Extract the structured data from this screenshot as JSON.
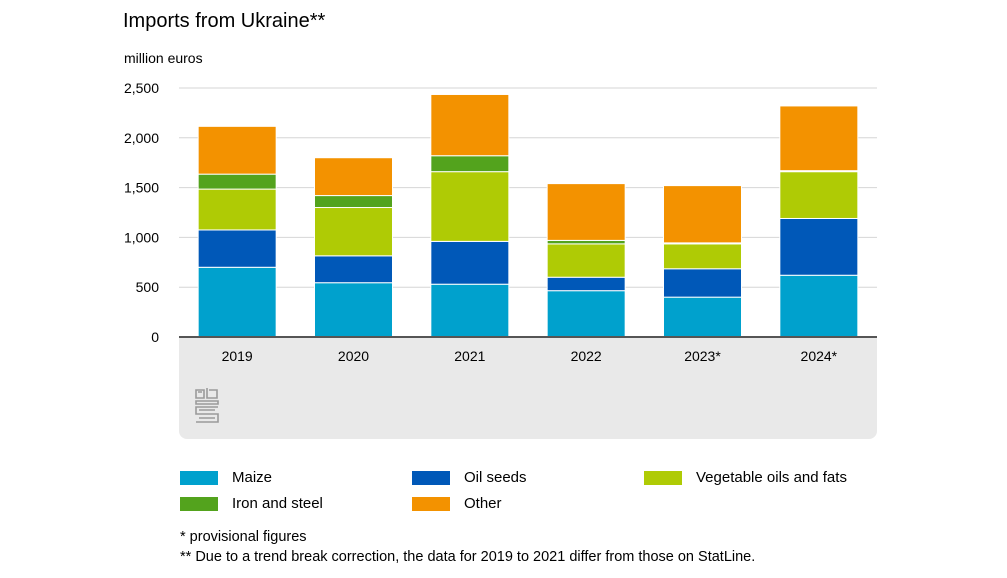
{
  "title": "Imports from Ukraine**",
  "unit": "million euros",
  "footnotes": [
    "* provisional figures",
    "** Due to a trend break correction, the data for 2019 to 2021 differ from those on StatLine."
  ],
  "logo_icon": "cbs-logo-icon",
  "chart_data": {
    "type": "bar",
    "stacked": true,
    "categories": [
      "2019",
      "2020",
      "2021",
      "2022",
      "2023*",
      "2024*"
    ],
    "ylim": [
      0,
      2500
    ],
    "yticks": [
      0,
      500,
      1000,
      1500,
      2000,
      2500
    ],
    "ytick_labels": [
      "0",
      "500",
      "1,000",
      "1,500",
      "2,000",
      "2,500"
    ],
    "grid": true,
    "legend_position": "bottom",
    "series": [
      {
        "name": "Maize",
        "color": "#00a1cd",
        "values": [
          700,
          545,
          530,
          465,
          400,
          620
        ]
      },
      {
        "name": "Oil seeds",
        "color": "#0058b8",
        "values": [
          375,
          270,
          430,
          135,
          285,
          570
        ]
      },
      {
        "name": "Vegetable oils and fats",
        "color": "#afcb05",
        "values": [
          410,
          485,
          700,
          335,
          250,
          470
        ]
      },
      {
        "name": "Iron and steel",
        "color": "#53a31d",
        "values": [
          150,
          120,
          160,
          35,
          10,
          10
        ]
      },
      {
        "name": "Other",
        "color": "#f39200",
        "values": [
          480,
          380,
          615,
          570,
          575,
          650
        ]
      }
    ]
  }
}
